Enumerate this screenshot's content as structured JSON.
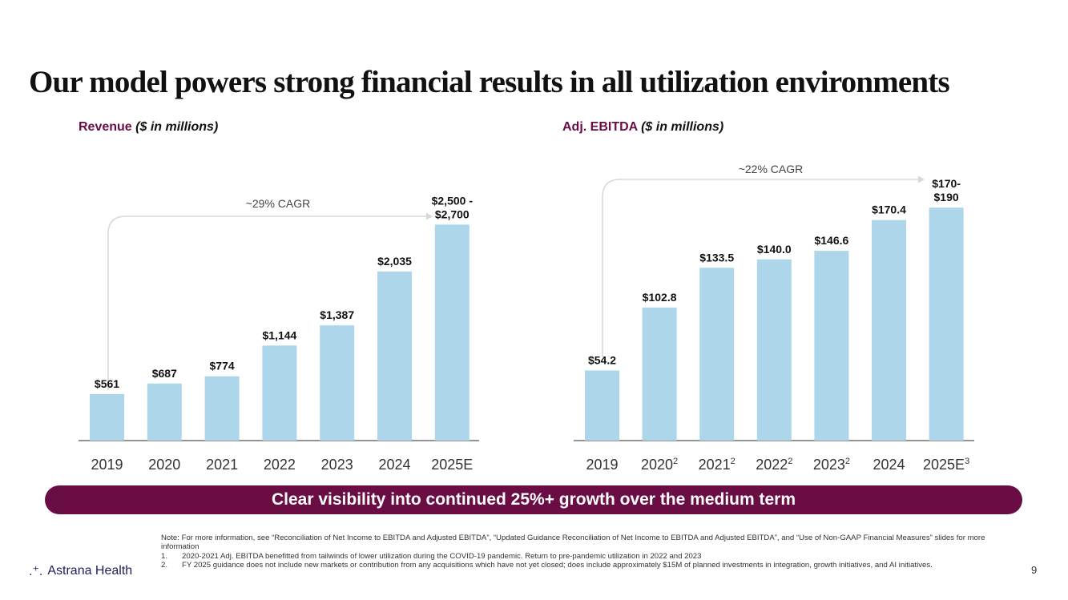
{
  "title": "Our model powers strong financial results in all utilization environments",
  "revenue_header": {
    "label": "Revenue",
    "unit": "($ in millions)"
  },
  "ebitda_header": {
    "label": "Adj. EBITDA",
    "unit": "($ in millions)"
  },
  "colors": {
    "bar": "#aed6ea",
    "accent": "#6b0d45",
    "arrow": "#d9d9d9"
  },
  "chart_data": [
    {
      "type": "bar",
      "name": "revenue",
      "categories": [
        "2019",
        "2020",
        "2021",
        "2022",
        "2023",
        "2024",
        "2025E"
      ],
      "category_sups": [
        "",
        "",
        "",
        "",
        "",
        "",
        ""
      ],
      "values": [
        561,
        687,
        774,
        1144,
        1387,
        2035,
        2600
      ],
      "value_labels": [
        [
          "$561"
        ],
        [
          "$687"
        ],
        [
          "$774"
        ],
        [
          "$1,144"
        ],
        [
          "$1,387"
        ],
        [
          "$2,035"
        ],
        [
          "$2,500 -",
          "$2,700"
        ]
      ],
      "ylim": [
        0,
        2700
      ],
      "annotation": "~29% CAGR",
      "title": "Revenue",
      "ylabel": "($ in millions)"
    },
    {
      "type": "bar",
      "name": "adj_ebitda",
      "categories": [
        "2019",
        "2020",
        "2021",
        "2022",
        "2023",
        "2024",
        "2025E"
      ],
      "category_sups": [
        "",
        "2",
        "2",
        "2",
        "2",
        "",
        "3"
      ],
      "values": [
        54.2,
        102.8,
        133.5,
        140.0,
        146.6,
        170.4,
        180
      ],
      "value_labels": [
        [
          "$54.2"
        ],
        [
          "$102.8"
        ],
        [
          "$133.5"
        ],
        [
          "$140.0"
        ],
        [
          "$146.6"
        ],
        [
          "$170.4"
        ],
        [
          "$170-",
          "$190"
        ]
      ],
      "ylim": [
        0,
        190
      ],
      "annotation": "~22% CAGR",
      "title": "Adj. EBITDA",
      "ylabel": "($ in millions)"
    }
  ],
  "banner": "Clear visibility into continued 25%+ growth over the medium term",
  "notes": {
    "intro": "Note: For more information, see “Reconciliation of Net Income to EBITDA and Adjusted EBITDA”, “Updated Guidance Reconciliation of Net Income to EBITDA and Adjusted EBITDA”, and “Use of Non-GAAP Financial Measures” slides for more information",
    "items": [
      {
        "num": "1.",
        "text": "2020-2021 Adj. EBITDA benefitted from tailwinds of lower utilization during the COVID-19 pandemic. Return to pre-pandemic utilization in 2022 and 2023"
      },
      {
        "num": "2.",
        "text": "FY 2025 guidance does not include new markets or contribution from any acquisitions which have not yet closed; does include approximately $15M of planned investments in integration, growth initiatives, and AI initiatives."
      }
    ]
  },
  "logo": {
    "icon": "astrana-mark-icon",
    "text": "Astrana Health"
  },
  "page_number": "9"
}
